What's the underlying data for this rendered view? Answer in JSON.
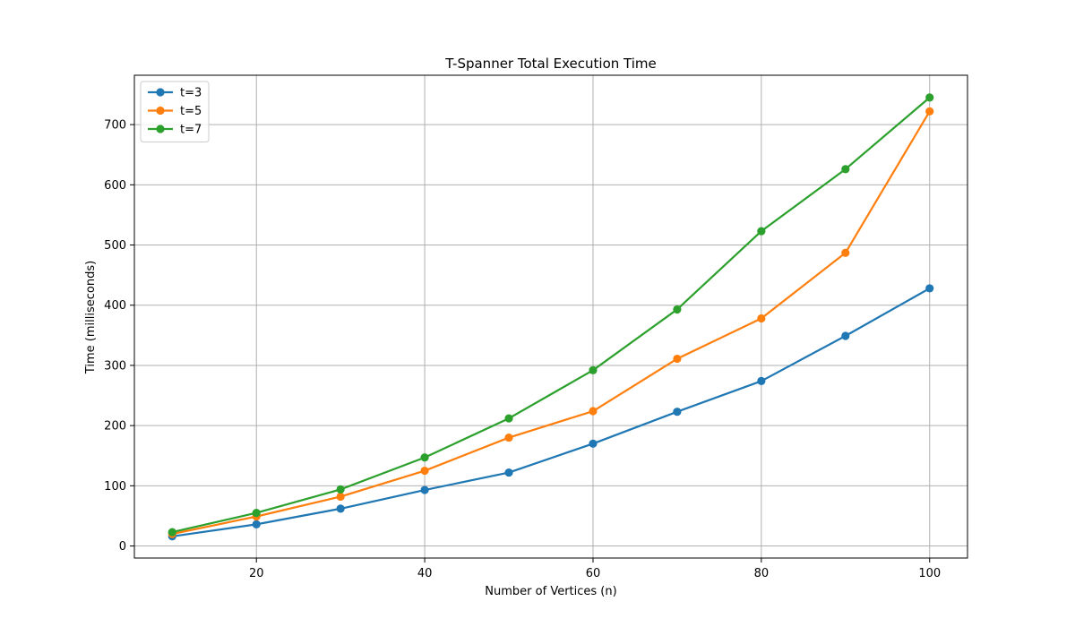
{
  "chart_data": {
    "type": "line",
    "title": "T-Spanner Total Execution Time",
    "xlabel": "Number of Vertices (n)",
    "ylabel": "Time (milliseconds)",
    "x": [
      10,
      20,
      30,
      40,
      50,
      60,
      70,
      80,
      90,
      100
    ],
    "series": [
      {
        "name": "t=3",
        "color": "#1f77b4",
        "values": [
          16,
          36,
          62,
          93,
          122,
          170,
          223,
          274,
          349,
          428
        ]
      },
      {
        "name": "t=5",
        "color": "#ff7f0e",
        "values": [
          20,
          49,
          82,
          125,
          180,
          224,
          311,
          378,
          487,
          722
        ]
      },
      {
        "name": "t=7",
        "color": "#2ca02c",
        "values": [
          23,
          55,
          94,
          147,
          212,
          292,
          393,
          523,
          626,
          745
        ]
      }
    ],
    "xlim": [
      5.5,
      104.5
    ],
    "ylim": [
      -20,
      782
    ],
    "xticks": [
      20,
      40,
      60,
      80,
      100
    ],
    "yticks": [
      0,
      100,
      200,
      300,
      400,
      500,
      600,
      700
    ],
    "grid": true,
    "legend_position": "top-left"
  }
}
